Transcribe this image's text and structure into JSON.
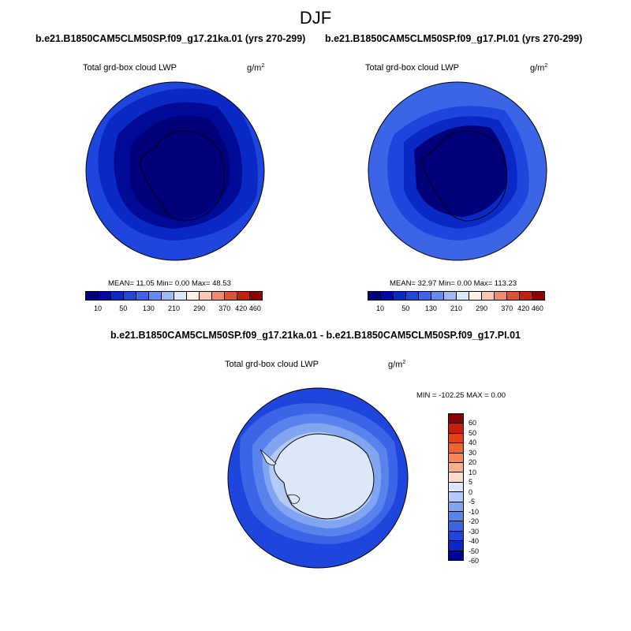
{
  "figure": {
    "title": "DJF",
    "panels": [
      {
        "case": "b.e21.B1850CAM5CLM50SP.f09_g17.21ka.01 (yrs 270-299)",
        "variable": "Total grd-box cloud LWP",
        "units_base": "g/m",
        "units_exp": "2",
        "stats": "MEAN=  11.05  Min=   0.00  Max=  48.53"
      },
      {
        "case": "b.e21.B1850CAM5CLM50SP.f09_g17.PI.01 (yrs 270-299)",
        "variable": "Total grd-box cloud LWP",
        "units_base": "g/m",
        "units_exp": "2",
        "stats": "MEAN=  32.97  Min=   0.00  Max= 113.23"
      }
    ],
    "diff": {
      "case": "b.e21.B1850CAM5CLM50SP.f09_g17.21ka.01 - b.e21.B1850CAM5CLM50SP.f09_g17.PI.01",
      "variable": "Total grd-box cloud LWP",
      "units_base": "g/m",
      "units_exp": "2",
      "stats": "MIN = -102.25 MAX =   0.00"
    }
  },
  "colorbars": {
    "abs": {
      "colors": [
        "#00007a",
        "#0000b5",
        "#0a28d2",
        "#1e46e1",
        "#3c64ec",
        "#648cf5",
        "#a0b9f5",
        "#dce8fa",
        "#fff0e6",
        "#fac8af",
        "#f08c6e",
        "#e65032",
        "#c81e0a",
        "#8c0000"
      ],
      "labels": [
        "10",
        "50",
        "130",
        "210",
        "290",
        "370",
        "420",
        "460"
      ]
    },
    "diff": {
      "colors": [
        "#8c0000",
        "#c81e0a",
        "#e64014",
        "#f06432",
        "#f5875a",
        "#f8b08c",
        "#fcdcc8",
        "#dce8fa",
        "#b4cbf7",
        "#82a5f2",
        "#5a82ec",
        "#3c64e6",
        "#1e46dc",
        "#0a28c3",
        "#00009b"
      ],
      "labels": [
        "60",
        "50",
        "40",
        "30",
        "20",
        "10",
        "5",
        "0",
        "-5",
        "-10",
        "-20",
        "-30",
        "-40",
        "-50",
        "-60"
      ]
    }
  },
  "map_colors": {
    "deep_navy": "#00007a",
    "navy": "#000a96",
    "dark_blue": "#0a28c3",
    "blue": "#1e46dc",
    "mid_blue": "#3c64e6",
    "light_blue": "#a0b9f5",
    "pale_blue": "#dce8fa"
  }
}
